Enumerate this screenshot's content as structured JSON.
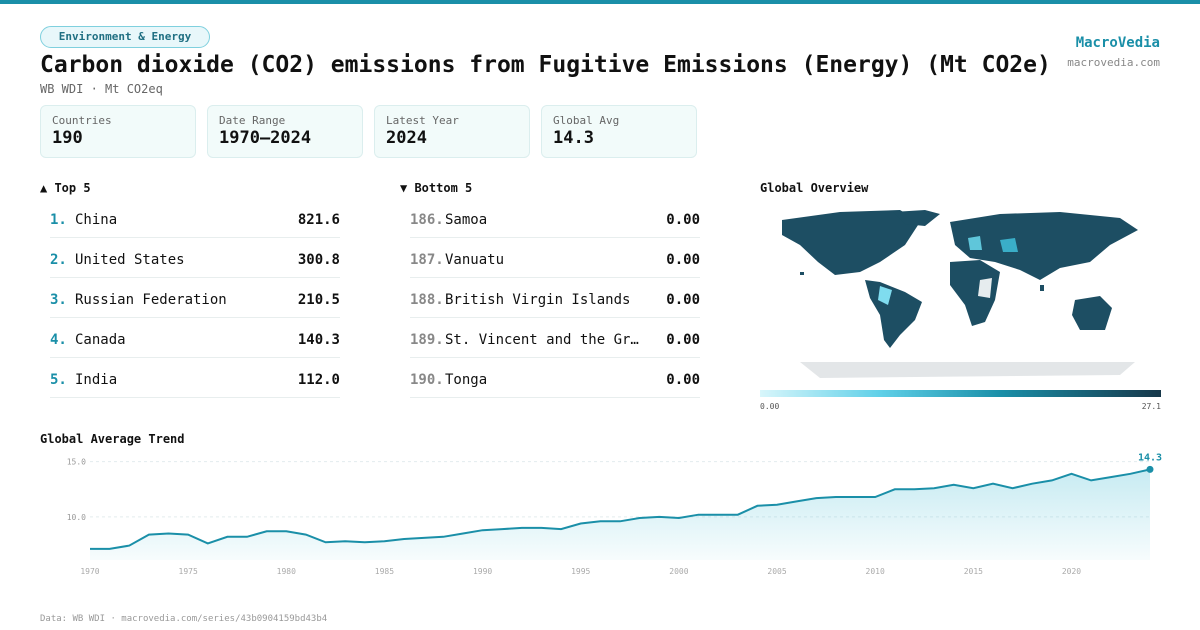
{
  "header": {
    "tag": "Environment & Energy",
    "title": "Carbon dioxide (CO2) emissions from Fugitive Emissions (Energy) (Mt CO2e)",
    "subtitle": "WB WDI · Mt CO2eq",
    "brand": "MacroVedia",
    "site": "macrovedia.com"
  },
  "stats": [
    {
      "label": "Countries",
      "value": 190
    },
    {
      "label": "Date Range",
      "value": "1970–2024"
    },
    {
      "label": "Latest Year",
      "value": 2024
    },
    {
      "label": "Global Avg",
      "value": 14.3
    }
  ],
  "top": {
    "heading": "▲ Top 5",
    "rows": [
      {
        "rank": "1.",
        "name": "China",
        "value": "821.6"
      },
      {
        "rank": "2.",
        "name": "United States",
        "value": "300.8"
      },
      {
        "rank": "3.",
        "name": "Russian Federation",
        "value": "210.5"
      },
      {
        "rank": "4.",
        "name": "Canada",
        "value": "140.3"
      },
      {
        "rank": "5.",
        "name": "India",
        "value": "112.0"
      }
    ]
  },
  "bottom": {
    "heading": "▼ Bottom 5",
    "rows": [
      {
        "rank": "186.",
        "name": "Samoa",
        "value": "0.00"
      },
      {
        "rank": "187.",
        "name": "Vanuatu",
        "value": "0.00"
      },
      {
        "rank": "188.",
        "name": "British Virgin Islands",
        "value": "0.00"
      },
      {
        "rank": "189.",
        "name": "St. Vincent and the Gr…",
        "value": "0.00"
      },
      {
        "rank": "190.",
        "name": "Tonga",
        "value": "0.00"
      }
    ]
  },
  "map": {
    "title": "Global Overview",
    "legend_min": "0.00",
    "legend_max": 27.1
  },
  "trend": {
    "type": "area",
    "title": "Global Average Trend",
    "color": "#1a8fa8",
    "x": [
      1970,
      1971,
      1972,
      1973,
      1974,
      1975,
      1976,
      1977,
      1978,
      1979,
      1980,
      1981,
      1982,
      1983,
      1984,
      1985,
      1986,
      1987,
      1988,
      1989,
      1990,
      1991,
      1992,
      1993,
      1994,
      1995,
      1996,
      1997,
      1998,
      1999,
      2000,
      2001,
      2002,
      2003,
      2004,
      2005,
      2006,
      2007,
      2008,
      2009,
      2010,
      2011,
      2012,
      2013,
      2014,
      2015,
      2016,
      2017,
      2018,
      2019,
      2020,
      2021,
      2022,
      2023,
      2024
    ],
    "values": [
      7.1,
      7.1,
      7.4,
      8.4,
      8.5,
      8.4,
      7.6,
      8.2,
      8.2,
      8.7,
      8.7,
      8.4,
      7.7,
      7.8,
      7.7,
      7.8,
      8.0,
      8.1,
      8.2,
      8.5,
      8.8,
      8.9,
      9.0,
      9.0,
      8.9,
      9.4,
      9.6,
      9.6,
      9.9,
      10.0,
      9.9,
      10.2,
      10.2,
      10.2,
      11.0,
      11.1,
      11.4,
      11.7,
      11.8,
      11.8,
      11.8,
      12.5,
      12.5,
      12.6,
      12.9,
      12.6,
      13.0,
      12.6,
      13.0,
      13.3,
      13.9,
      13.3,
      13.6,
      13.9,
      14.3
    ],
    "xlim": [
      1970,
      2024
    ],
    "xticks": [
      1970,
      1975,
      1980,
      1985,
      1990,
      1995,
      2000,
      2005,
      2010,
      2015,
      2020
    ],
    "ylim": [
      6.1,
      15.6
    ],
    "yticks": [
      {
        "value": 10,
        "label": "10.0"
      },
      {
        "value": 15,
        "label": "15.0"
      }
    ],
    "grid": true
  },
  "footer": "Data: WB WDI · macrovedia.com/series/43b0904159bd43b4"
}
